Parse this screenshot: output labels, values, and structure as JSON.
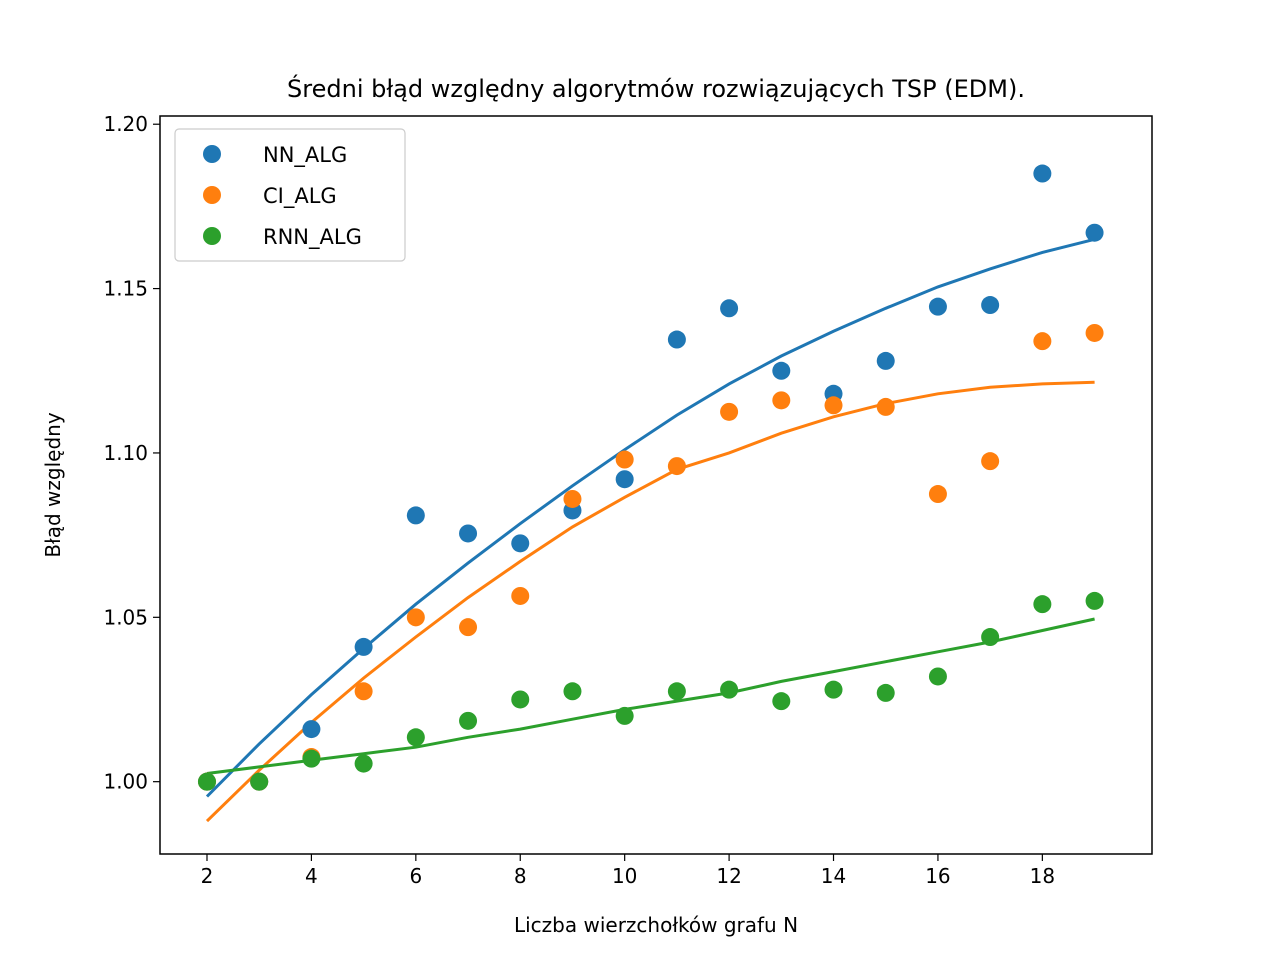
{
  "chart_data": {
    "type": "scatter",
    "title": "Średni błąd względny algorytmów rozwiązujących TSP (EDM).",
    "xlabel": "Liczba wierzchołków grafu N",
    "ylabel": "Błąd względny",
    "xlim": [
      1.1,
      20.1
    ],
    "ylim": [
      0.978,
      1.2025
    ],
    "xticks": [
      2,
      4,
      6,
      8,
      10,
      12,
      14,
      16,
      18
    ],
    "xtick_labels": [
      "2",
      "4",
      "6",
      "8",
      "10",
      "12",
      "14",
      "16",
      "18"
    ],
    "yticks": [
      1.0,
      1.05,
      1.1,
      1.15,
      1.2
    ],
    "ytick_labels": [
      "1.00",
      "1.05",
      "1.10",
      "1.15",
      "1.20"
    ],
    "grid": false,
    "legend_position": "top-left",
    "series": [
      {
        "name": "NN_ALG",
        "color": "#1f77b4",
        "x": [
          2,
          3,
          4,
          5,
          6,
          7,
          8,
          9,
          10,
          11,
          12,
          13,
          14,
          15,
          16,
          17,
          18,
          19
        ],
        "y": [
          1.0,
          1.0,
          1.016,
          1.041,
          1.081,
          1.0755,
          1.0725,
          1.0825,
          1.092,
          1.1345,
          1.144,
          1.125,
          1.118,
          1.128,
          1.1445,
          1.145,
          1.185,
          1.167
        ],
        "trend_y": [
          0.9955,
          1.0115,
          1.0265,
          1.0405,
          1.054,
          1.0665,
          1.0785,
          1.09,
          1.101,
          1.1115,
          1.121,
          1.1295,
          1.137,
          1.144,
          1.1505,
          1.156,
          1.161,
          1.165
        ]
      },
      {
        "name": "CI_ALG",
        "color": "#ff7f0e",
        "x": [
          2,
          3,
          4,
          5,
          6,
          7,
          8,
          9,
          10,
          11,
          12,
          13,
          14,
          15,
          16,
          17,
          18,
          19
        ],
        "y": [
          1.0,
          1.0,
          1.0075,
          1.0275,
          1.05,
          1.047,
          1.0565,
          1.086,
          1.098,
          1.096,
          1.1125,
          1.116,
          1.1145,
          1.114,
          1.0875,
          1.0975,
          1.134,
          1.1365
        ],
        "trend_y": [
          0.988,
          1.0035,
          1.018,
          1.0315,
          1.044,
          1.056,
          1.067,
          1.0775,
          1.0865,
          1.095,
          1.1,
          1.106,
          1.111,
          1.115,
          1.118,
          1.12,
          1.121,
          1.1215
        ]
      },
      {
        "name": "RNN_ALG",
        "color": "#2ca02c",
        "x": [
          2,
          3,
          4,
          5,
          6,
          7,
          8,
          9,
          10,
          11,
          12,
          13,
          14,
          15,
          16,
          17,
          18,
          19
        ],
        "y": [
          1.0,
          1.0,
          1.007,
          1.0055,
          1.0135,
          1.0185,
          1.025,
          1.0275,
          1.02,
          1.0275,
          1.028,
          1.0245,
          1.028,
          1.027,
          1.032,
          1.044,
          1.054,
          1.055
        ],
        "trend_y": [
          1.0025,
          1.0045,
          1.0065,
          1.0085,
          1.0105,
          1.0135,
          1.016,
          1.019,
          1.022,
          1.0245,
          1.027,
          1.0305,
          1.0335,
          1.0365,
          1.0395,
          1.0425,
          1.046,
          1.0495
        ]
      }
    ]
  }
}
